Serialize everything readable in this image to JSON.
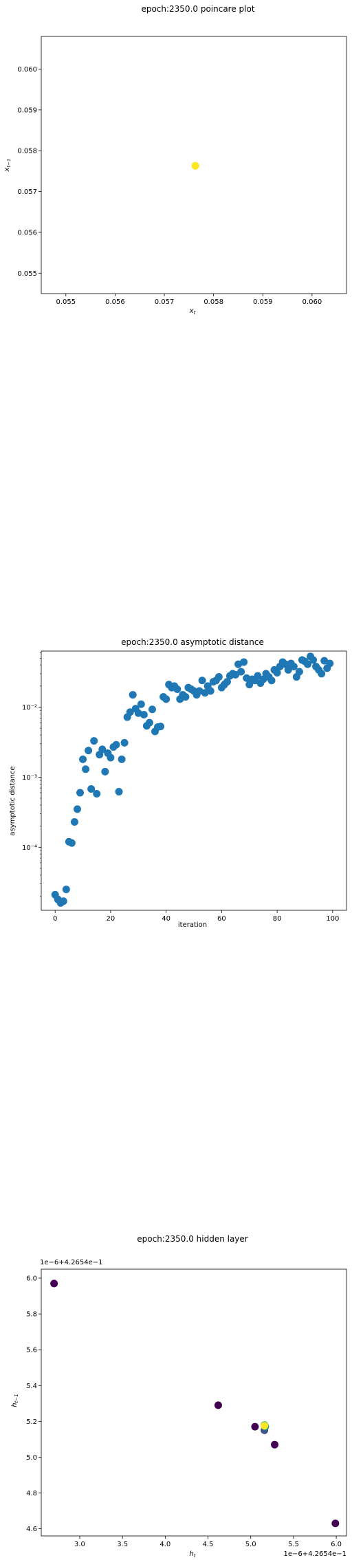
{
  "chart_data": [
    {
      "type": "scatter",
      "title": "epoch:2350.0 poincare plot",
      "xlabel": "x_t",
      "ylabel": "x_{t-1}",
      "xlim": [
        0.0545,
        0.0607
      ],
      "ylim": [
        0.0545,
        0.0608
      ],
      "x_ticks": [
        "0.055",
        "0.056",
        "0.057",
        "0.058",
        "0.059",
        "0.060"
      ],
      "y_ticks": [
        "0.055",
        "0.056",
        "0.057",
        "0.058",
        "0.059",
        "0.060"
      ],
      "points": [
        {
          "x": 0.05763,
          "y": 0.05763,
          "color": "#fde725"
        }
      ]
    },
    {
      "type": "scatter",
      "title": "epoch:2350.0 asymptotic distance",
      "xlabel": "iteration",
      "ylabel": "asymptotic distance",
      "xlim": [
        -5,
        105
      ],
      "ylim_log10": [
        -4.9,
        -1.2
      ],
      "x_ticks": [
        "0",
        "20",
        "40",
        "60",
        "80",
        "100"
      ],
      "y_ticks": [
        "10⁻⁴",
        "10⁻³",
        "10⁻²"
      ],
      "y_tick_exponents": [
        -4,
        -3,
        -2
      ],
      "color": "#1f77b4",
      "x": [
        0,
        1,
        2,
        3,
        4,
        5,
        6,
        7,
        8,
        9,
        10,
        11,
        12,
        13,
        14,
        15,
        16,
        17,
        18,
        19,
        20,
        21,
        22,
        23,
        24,
        25,
        26,
        27,
        28,
        29,
        30,
        31,
        32,
        33,
        34,
        35,
        36,
        37,
        38,
        39,
        40,
        41,
        42,
        43,
        44,
        45,
        46,
        47,
        48,
        49,
        50,
        51,
        52,
        53,
        54,
        55,
        56,
        57,
        58,
        59,
        60,
        61,
        62,
        63,
        64,
        65,
        66,
        67,
        68,
        69,
        70,
        71,
        72,
        73,
        74,
        75,
        76,
        77,
        78,
        79,
        80,
        81,
        82,
        83,
        84,
        85,
        86,
        87,
        88,
        89,
        90,
        91,
        92,
        93,
        94,
        95,
        96,
        97,
        98,
        99
      ],
      "y": [
        2.1e-05,
        1.8e-05,
        1.6e-05,
        1.7e-05,
        2.5e-05,
        0.00012,
        0.000115,
        0.00023,
        0.00035,
        0.0006,
        0.0018,
        0.0013,
        0.0024,
        0.00068,
        0.0033,
        0.00058,
        0.0021,
        0.0025,
        0.0012,
        0.0022,
        0.0019,
        0.0027,
        0.0029,
        0.00062,
        0.0018,
        0.0031,
        0.0072,
        0.0085,
        0.015,
        0.0095,
        0.0082,
        0.011,
        0.0078,
        0.0054,
        0.006,
        0.0093,
        0.0045,
        0.0052,
        0.0053,
        0.014,
        0.013,
        0.021,
        0.019,
        0.02,
        0.018,
        0.013,
        0.015,
        0.014,
        0.019,
        0.018,
        0.017,
        0.015,
        0.017,
        0.024,
        0.016,
        0.02,
        0.017,
        0.023,
        0.024,
        0.027,
        0.019,
        0.021,
        0.023,
        0.028,
        0.03,
        0.029,
        0.041,
        0.032,
        0.044,
        0.026,
        0.021,
        0.025,
        0.024,
        0.028,
        0.022,
        0.025,
        0.03,
        0.027,
        0.024,
        0.034,
        0.031,
        0.038,
        0.044,
        0.041,
        0.034,
        0.042,
        0.038,
        0.027,
        0.032,
        0.047,
        0.045,
        0.041,
        0.053,
        0.047,
        0.038,
        0.034,
        0.03,
        0.046,
        0.036,
        0.042
      ]
    },
    {
      "type": "scatter",
      "title": "epoch:2350.0 hidden layer",
      "xlabel": "h_t",
      "ylabel": "h_{t-1}",
      "x_offset_text": "1e−6+4.2654e−1",
      "y_offset_text": "1e−6+4.2654e−1",
      "xlim": [
        2.55,
        6.12
      ],
      "ylim": [
        4.56,
        6.05
      ],
      "x_ticks": [
        "3.0",
        "3.5",
        "4.0",
        "4.5",
        "5.0",
        "5.5",
        "6.0"
      ],
      "y_ticks": [
        "4.6",
        "4.8",
        "5.0",
        "5.2",
        "5.4",
        "5.6",
        "5.8",
        "6.0"
      ],
      "points": [
        {
          "x": 2.7,
          "y": 5.97,
          "color": "#440154"
        },
        {
          "x": 4.62,
          "y": 5.29,
          "color": "#440154"
        },
        {
          "x": 5.05,
          "y": 5.17,
          "color": "#440154"
        },
        {
          "x": 5.28,
          "y": 5.07,
          "color": "#440154"
        },
        {
          "x": 5.99,
          "y": 4.63,
          "color": "#440154"
        },
        {
          "x": 5.16,
          "y": 5.15,
          "color": "#3b528b"
        },
        {
          "x": 5.17,
          "y": 5.17,
          "color": "#21918c"
        },
        {
          "x": 5.16,
          "y": 5.18,
          "color": "#5ec962"
        },
        {
          "x": 5.16,
          "y": 5.175,
          "color": "#fde725"
        }
      ]
    }
  ]
}
